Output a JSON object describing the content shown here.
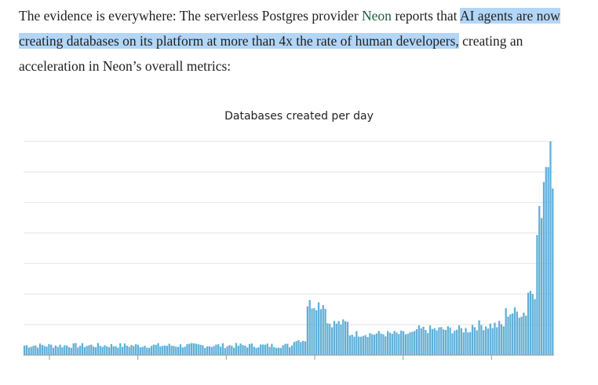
{
  "article": {
    "text_before_link": "The evidence is everywhere: The serverless Postgres provider ",
    "link_text": "Neon",
    "text_after_link": " reports that ",
    "highlighted_text": "AI agents are now creating databases on its platform at more than 4x the rate of human developers,",
    "text_end": " creating an acceleration in Neon’s overall metrics:"
  },
  "colors": {
    "bar": "#5fb0d8",
    "highlight": "#b3d6f7",
    "grid": "#e3e3e3",
    "axis": "#9a9a9a"
  },
  "chart_data": {
    "type": "bar",
    "title": "Databases created per day",
    "xlabel": "",
    "ylabel": "",
    "ylim": [
      0,
      100
    ],
    "grid": true,
    "gridlines": 7,
    "x_ticks": 6,
    "segments": [
      {
        "from_day": 0,
        "to_day": 120,
        "level": 4.5,
        "noise": 1.2
      },
      {
        "from_day": 121,
        "to_day": 126,
        "level": 7,
        "noise": 1.0
      },
      {
        "from_day": 127,
        "to_day": 135,
        "level": 24,
        "noise": 3
      },
      {
        "from_day": 136,
        "to_day": 145,
        "level": 15,
        "noise": 2
      },
      {
        "from_day": 146,
        "to_day": 175,
        "level": 10,
        "noise": 1.6
      },
      {
        "from_day": 176,
        "to_day": 200,
        "level": 12,
        "noise": 2
      },
      {
        "from_day": 201,
        "to_day": 215,
        "level": 14,
        "noise": 2.5
      },
      {
        "from_day": 216,
        "to_day": 225,
        "level": 20,
        "noise": 3
      },
      {
        "from_day": 226,
        "to_day": 229,
        "level": 30,
        "noise": 4
      },
      {
        "from_day": 230,
        "to_day": 232,
        "level": 65,
        "noise": 10
      },
      {
        "from_day": 233,
        "to_day": 234,
        "level": 80,
        "noise": 10
      }
    ],
    "peak_value": 100
  }
}
